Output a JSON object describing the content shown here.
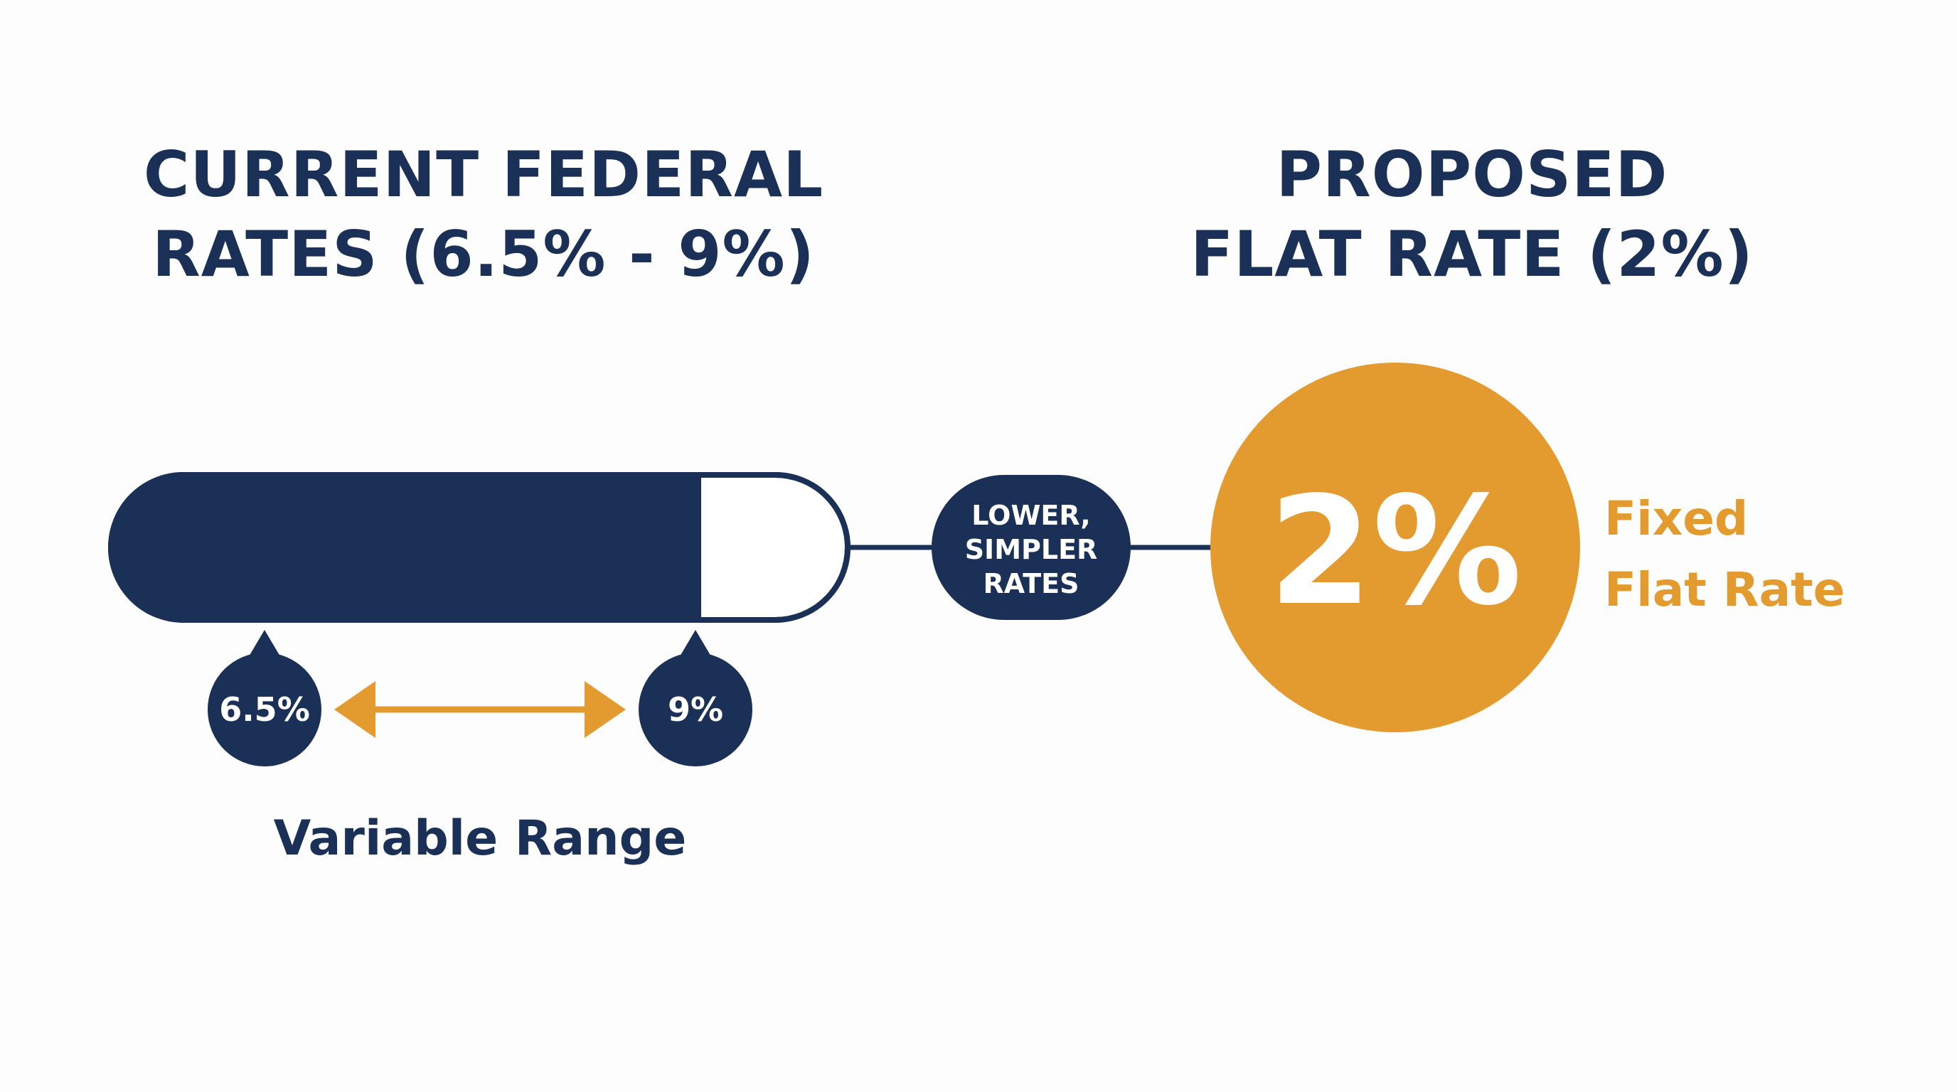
{
  "colors": {
    "navy": "#1b3056",
    "gold": "#e39b2f",
    "white": "#ffffff",
    "background": "#fdfdfd"
  },
  "left": {
    "title_line1": "CURRENT FEDERAL",
    "title_line2": "RATES (6.5% - 9%)",
    "low_marker": "6.5%",
    "high_marker": "9%",
    "range_label": "Variable Range"
  },
  "connector": {
    "line1": "LOWER,",
    "line2": "SIMPLER",
    "line3": "RATES"
  },
  "right": {
    "title_line1": "PROPOSED",
    "title_line2": "FLAT RATE (2%)",
    "big_value": "2%",
    "caption_line1": "Fixed",
    "caption_line2": "Flat Rate"
  }
}
